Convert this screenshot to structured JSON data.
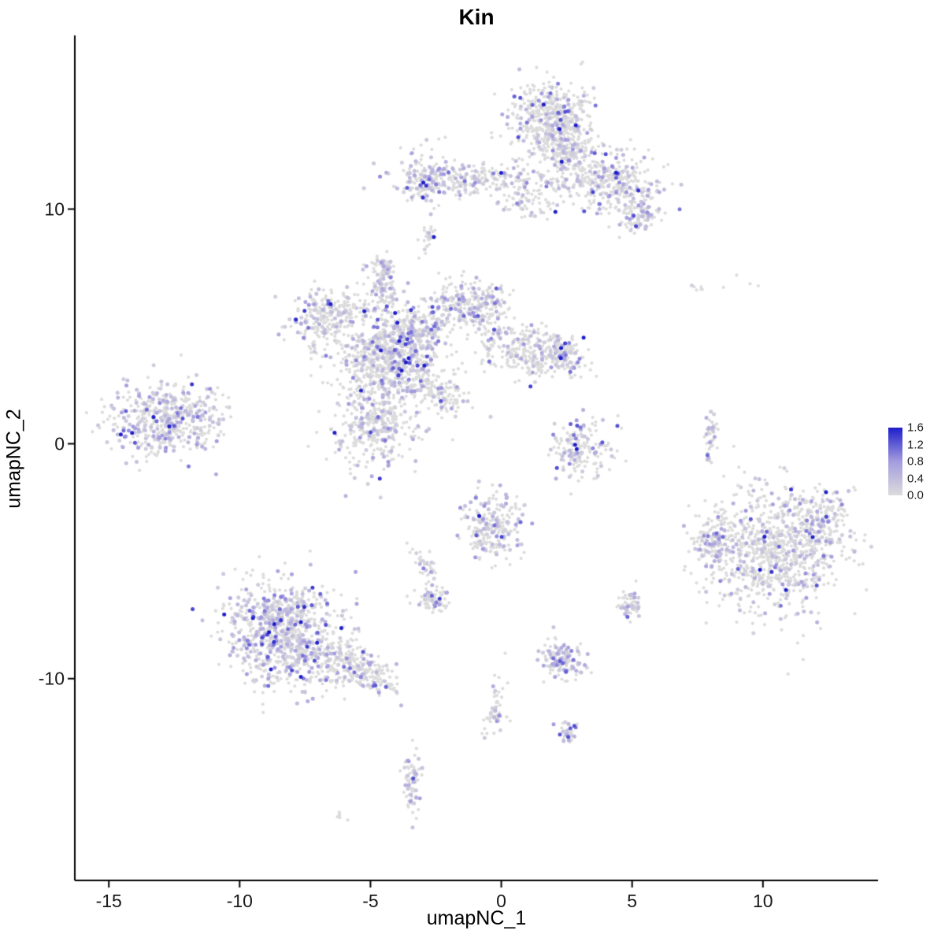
{
  "title": "Kin",
  "xlabel": "umapNC_1",
  "ylabel": "umapNC_2",
  "chart_data": {
    "type": "scatter",
    "title": "Kin",
    "xlabel": "umapNC_1",
    "ylabel": "umapNC_2",
    "x_domain": [
      -16.3,
      14.4
    ],
    "y_domain": [
      -18.6,
      17.4
    ],
    "x_ticks": [
      -15,
      -10,
      -5,
      0,
      5,
      10
    ],
    "y_ticks": [
      10,
      0,
      -10
    ],
    "seed": 42,
    "grid": false,
    "legend_position": "right",
    "expr_base": 0.12,
    "expr_scale": 0.38,
    "colors": {
      "low": "#DCDCDC",
      "mid": "#A49CDE",
      "high": "#1E1ECB",
      "axis": "#000000",
      "background": "#FFFFFF"
    },
    "legend": {
      "min": 0.0,
      "max": 1.6,
      "labels": [
        "1.6",
        "1.2",
        "0.8",
        "0.4",
        "0.0"
      ]
    },
    "clusters": [
      {
        "x": 2.0,
        "y": 13.8,
        "sx": 0.75,
        "sy": 0.85,
        "n": 520,
        "f": 0.22
      },
      {
        "x": 2.6,
        "y": 12.3,
        "sx": 0.5,
        "sy": 0.5,
        "n": 150,
        "f": 0.25
      },
      {
        "x": 4.4,
        "y": 11.0,
        "sx": 0.9,
        "sy": 0.7,
        "n": 320,
        "f": 0.3,
        "rot": -0.5
      },
      {
        "x": 5.3,
        "y": 9.7,
        "sx": 0.4,
        "sy": 0.4,
        "n": 80,
        "f": 0.3
      },
      {
        "x": -0.9,
        "y": 11.3,
        "sx": 1.6,
        "sy": 0.35,
        "n": 220,
        "f": 0.28
      },
      {
        "x": -2.9,
        "y": 11.2,
        "sx": 0.45,
        "sy": 0.55,
        "n": 130,
        "f": 0.4
      },
      {
        "x": -2.8,
        "y": 8.8,
        "sx": 0.15,
        "sy": 0.35,
        "n": 30,
        "f": 0.2
      },
      {
        "x": 1.3,
        "y": 10.5,
        "sx": 0.7,
        "sy": 0.4,
        "n": 90,
        "f": 0.3
      },
      {
        "x": -4.3,
        "y": 3.6,
        "sx": 0.95,
        "sy": 0.75,
        "n": 650,
        "f": 0.28
      },
      {
        "x": -6.6,
        "y": 5.4,
        "sx": 0.75,
        "sy": 0.55,
        "n": 260,
        "f": 0.33,
        "rot": 0.4
      },
      {
        "x": -4.6,
        "y": 6.6,
        "sx": 0.3,
        "sy": 0.7,
        "n": 110,
        "f": 0.3
      },
      {
        "x": -4.5,
        "y": 7.6,
        "sx": 0.18,
        "sy": 0.3,
        "n": 40,
        "f": 0.35
      },
      {
        "x": -1.2,
        "y": 5.9,
        "sx": 0.75,
        "sy": 0.5,
        "n": 240,
        "f": 0.3
      },
      {
        "x": 0.9,
        "y": 4.0,
        "sx": 1.1,
        "sy": 0.55,
        "n": 300,
        "f": 0.22,
        "rot": -0.3
      },
      {
        "x": 2.3,
        "y": 3.8,
        "sx": 0.35,
        "sy": 0.45,
        "n": 90,
        "f": 0.3
      },
      {
        "x": -4.8,
        "y": 1.0,
        "sx": 0.85,
        "sy": 0.95,
        "n": 380,
        "f": 0.3
      },
      {
        "x": -2.3,
        "y": 2.2,
        "sx": 0.6,
        "sy": 0.4,
        "n": 120,
        "f": 0.2,
        "rot": -0.6
      },
      {
        "x": -3.2,
        "y": 4.8,
        "sx": 0.6,
        "sy": 0.6,
        "n": 200,
        "f": 0.3
      },
      {
        "x": -12.8,
        "y": 1.0,
        "sx": 1.05,
        "sy": 0.75,
        "n": 480,
        "f": 0.38
      },
      {
        "x": 3.0,
        "y": -0.3,
        "sx": 0.6,
        "sy": 0.65,
        "n": 160,
        "f": 0.3
      },
      {
        "x": 8.0,
        "y": 0.3,
        "sx": 0.12,
        "sy": 0.55,
        "n": 45,
        "f": 0.3
      },
      {
        "x": 8.6,
        "y": 6.7,
        "sx": 1.1,
        "sy": 0.25,
        "n": 10,
        "f": 0.15
      },
      {
        "x": 10.6,
        "y": -4.6,
        "sx": 1.25,
        "sy": 1.3,
        "n": 850,
        "f": 0.25
      },
      {
        "x": 8.2,
        "y": -4.3,
        "sx": 0.45,
        "sy": 0.7,
        "n": 150,
        "f": 0.35
      },
      {
        "x": 12.4,
        "y": -3.2,
        "sx": 0.5,
        "sy": 0.6,
        "n": 120,
        "f": 0.25
      },
      {
        "x": -8.4,
        "y": -8.0,
        "sx": 1.05,
        "sy": 1.1,
        "n": 820,
        "f": 0.38
      },
      {
        "x": -6.3,
        "y": -9.3,
        "sx": 0.7,
        "sy": 0.5,
        "n": 180,
        "f": 0.3,
        "rot": -0.5
      },
      {
        "x": -4.9,
        "y": -9.9,
        "sx": 0.6,
        "sy": 0.35,
        "n": 120,
        "f": 0.25,
        "rot": -0.3
      },
      {
        "x": -0.4,
        "y": -3.6,
        "sx": 0.55,
        "sy": 0.75,
        "n": 240,
        "f": 0.3
      },
      {
        "x": -2.6,
        "y": -6.7,
        "sx": 0.3,
        "sy": 0.28,
        "n": 80,
        "f": 0.3
      },
      {
        "x": 4.9,
        "y": -6.9,
        "sx": 0.22,
        "sy": 0.28,
        "n": 60,
        "f": 0.35
      },
      {
        "x": 2.3,
        "y": -9.2,
        "sx": 0.42,
        "sy": 0.42,
        "n": 130,
        "f": 0.4
      },
      {
        "x": -0.2,
        "y": -11.3,
        "sx": 0.2,
        "sy": 0.65,
        "n": 60,
        "f": 0.2,
        "rot": -0.2
      },
      {
        "x": 2.5,
        "y": -12.4,
        "sx": 0.22,
        "sy": 0.22,
        "n": 35,
        "f": 0.4
      },
      {
        "x": -3.4,
        "y": -14.3,
        "sx": 0.17,
        "sy": 0.7,
        "n": 75,
        "f": 0.35
      },
      {
        "x": -6.1,
        "y": -15.9,
        "sx": 0.1,
        "sy": 0.1,
        "n": 6,
        "f": 0.2
      },
      {
        "x": -2.9,
        "y": -5.2,
        "sx": 0.2,
        "sy": 0.5,
        "n": 40,
        "f": 0.2,
        "rot": 0.5
      }
    ]
  }
}
